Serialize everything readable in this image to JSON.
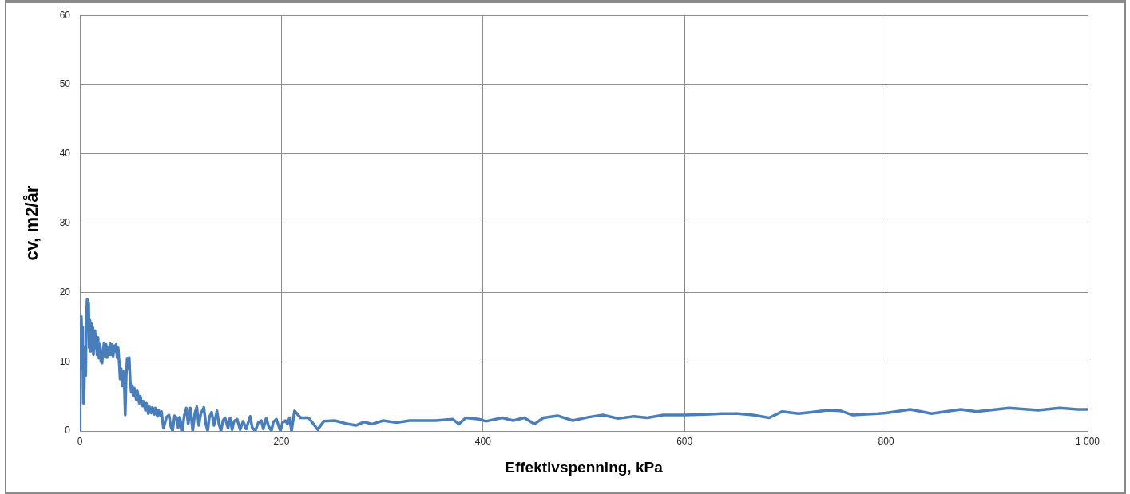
{
  "chart_data": {
    "type": "line",
    "xlabel": "Effektivspenning, kPa",
    "ylabel": "cv, m2/år",
    "x": [
      0,
      0.3,
      0.8,
      1.5,
      2.2,
      2.8,
      3.5,
      4.3,
      5,
      5.8,
      6.5,
      7.3,
      8,
      8.7,
      9.3,
      10,
      10.7,
      11.4,
      12,
      12.8,
      13.5,
      14.3,
      15,
      16,
      17,
      18,
      19,
      20,
      21,
      22,
      23,
      24,
      25,
      26,
      27,
      28,
      29,
      30,
      31,
      32,
      33,
      34,
      35,
      36,
      37,
      38,
      39,
      40,
      41,
      42,
      43,
      44,
      45,
      46,
      47,
      48,
      49,
      50,
      51,
      52,
      53,
      54,
      56,
      57,
      59,
      60,
      62,
      63,
      65,
      66,
      68,
      69,
      71,
      72,
      74,
      75,
      77,
      78,
      80,
      81,
      82,
      83,
      86,
      88.5,
      90,
      92,
      94,
      96,
      97.5,
      99,
      101.7,
      103.5,
      105.6,
      107.5,
      109.6,
      112,
      114,
      116,
      118,
      120,
      123,
      125,
      126.8,
      128.5,
      130.7,
      133,
      136,
      138,
      140,
      142,
      144,
      147,
      149,
      151,
      153,
      156,
      159,
      162,
      165,
      169,
      171,
      174,
      177,
      180,
      182,
      185,
      187,
      190,
      192,
      195,
      199,
      201,
      204,
      206,
      208,
      210,
      213,
      219,
      227,
      236,
      242,
      253,
      266,
      274,
      282,
      290,
      301,
      314,
      327,
      340,
      353,
      370,
      376,
      383,
      396,
      403,
      419,
      430,
      441,
      451,
      460,
      474,
      489,
      505,
      519,
      534,
      550,
      563,
      579,
      600,
      621,
      637,
      653,
      668,
      684,
      697,
      713,
      726,
      742,
      755,
      767,
      777,
      792,
      800,
      824,
      845,
      874,
      890,
      922,
      951,
      972,
      990,
      1000
    ],
    "values": [
      0,
      13.5,
      9,
      16.5,
      12,
      15,
      4,
      6,
      12,
      8,
      17,
      19,
      16,
      18.5,
      12,
      16,
      11.5,
      15.5,
      12,
      15,
      11,
      14.5,
      12,
      14,
      11,
      13.5,
      10.5,
      12.5,
      10,
      9.8,
      11.5,
      12.7,
      10.8,
      12.5,
      10.6,
      12,
      11,
      12.6,
      11,
      12.5,
      10.8,
      12.3,
      11.5,
      12.5,
      10.6,
      12,
      10,
      7.5,
      9,
      6.5,
      8.6,
      7.5,
      2.3,
      8,
      10.5,
      9,
      10.6,
      7,
      5.6,
      6.5,
      5,
      6.2,
      4.5,
      5.8,
      4,
      5,
      3.6,
      4.3,
      3,
      4,
      2.5,
      3.5,
      2.6,
      3.4,
      2.4,
      3.3,
      2.1,
      3,
      2.2,
      2.8,
      1.5,
      0.4,
      2,
      2.3,
      0.8,
      0,
      2.2,
      1.9,
      0.5,
      2,
      0,
      2.2,
      3.3,
      1,
      3.3,
      0,
      2.5,
      3.5,
      0.8,
      2.5,
      3.4,
      1,
      0,
      2,
      2.7,
      0.8,
      2.9,
      1,
      0,
      1.5,
      1.9,
      0.4,
      1.9,
      0.2,
      1.4,
      1.7,
      0.2,
      1.4,
      0.3,
      2.1,
      0.5,
      0,
      1.2,
      1.5,
      0.3,
      1.9,
      0.8,
      0,
      1.3,
      1.7,
      0,
      1.2,
      1.5,
      1,
      1.9,
      0,
      2.9,
      1.9,
      1.9,
      0.2,
      1.4,
      1.5,
      1,
      0.8,
      1.3,
      1,
      1.5,
      1.2,
      1.5,
      1.5,
      1.5,
      1.7,
      1,
      1.9,
      1.7,
      1.4,
      1.9,
      1.5,
      1.9,
      1,
      1.9,
      2.2,
      1.5,
      2,
      2.3,
      1.8,
      2.1,
      1.9,
      2.3,
      2.3,
      2.4,
      2.5,
      2.5,
      2.3,
      1.9,
      2.8,
      2.5,
      2.7,
      3,
      2.9,
      2.3,
      2.4,
      2.5,
      2.6,
      3.1,
      2.5,
      3.1,
      2.8,
      3.3,
      3,
      3.3,
      3.1,
      3.1
    ],
    "color": "#4a7ebb",
    "marker": "none",
    "line_style": "solid",
    "xlim": [
      0,
      1000
    ],
    "xticks": [
      0,
      200,
      400,
      600,
      800,
      {
        "value": 1000,
        "label": "1 000"
      }
    ],
    "ylim": [
      0,
      60
    ],
    "yticks": [
      0,
      10,
      20,
      30,
      40,
      50,
      60
    ],
    "grid": true
  }
}
